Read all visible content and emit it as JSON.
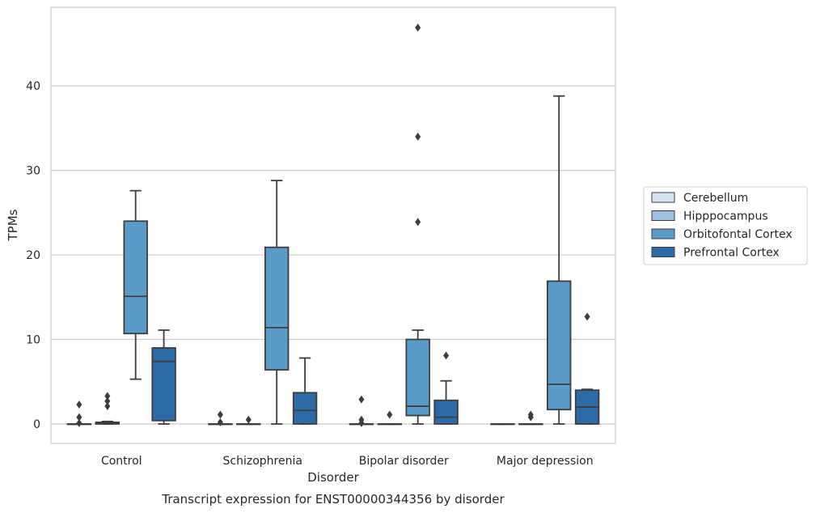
{
  "chart_data": {
    "type": "box",
    "title": "",
    "caption": "Transcript expression for ENST00000344356 by disorder",
    "xlabel": "Disorder",
    "ylabel": "TPMs",
    "ylim": [
      -2.3,
      49.3
    ],
    "yticks": [
      0,
      10,
      20,
      30,
      40
    ],
    "grid": "horizontal",
    "legend_position": "right",
    "categories": [
      "Control",
      "Schizophrenia",
      "Bipolar disorder",
      "Major depression"
    ],
    "series": [
      {
        "name": "Cerebellum",
        "color": "#d4e2f1",
        "boxes": [
          {
            "whislo": 0,
            "q1": 0,
            "med": 0,
            "q3": 0,
            "whishi": 0,
            "fliers": [
              0.1,
              0.8,
              2.3
            ]
          },
          {
            "whislo": 0,
            "q1": 0,
            "med": 0,
            "q3": 0,
            "whishi": 0,
            "fliers": [
              0.2,
              1.1
            ]
          },
          {
            "whislo": 0,
            "q1": 0,
            "med": 0,
            "q3": 0,
            "whishi": 0,
            "fliers": [
              0.1,
              0.5,
              2.9
            ]
          },
          {
            "whislo": 0,
            "q1": 0,
            "med": 0,
            "q3": 0,
            "whishi": 0,
            "fliers": []
          }
        ]
      },
      {
        "name": "Hipppocampus",
        "color": "#9cc0de",
        "boxes": [
          {
            "whislo": 0,
            "q1": 0,
            "med": 0.1,
            "q3": 0.2,
            "whishi": 0.3,
            "fliers": [
              2.1,
              2.7,
              3.3
            ]
          },
          {
            "whislo": 0,
            "q1": 0,
            "med": 0,
            "q3": 0,
            "whishi": 0,
            "fliers": [
              0.5
            ]
          },
          {
            "whislo": 0,
            "q1": 0,
            "med": 0,
            "q3": 0,
            "whishi": 0,
            "fliers": [
              1.1
            ]
          },
          {
            "whislo": 0,
            "q1": 0,
            "med": 0,
            "q3": 0,
            "whishi": 0,
            "fliers": [
              0.8,
              1.1
            ]
          }
        ]
      },
      {
        "name": "Orbitofontal Cortex",
        "color": "#5b9bc8",
        "boxes": [
          {
            "whislo": 5.3,
            "q1": 10.7,
            "med": 15.1,
            "q3": 24.0,
            "whishi": 27.6,
            "fliers": []
          },
          {
            "whislo": 0,
            "q1": 6.4,
            "med": 11.4,
            "q3": 20.9,
            "whishi": 28.8,
            "fliers": []
          },
          {
            "whislo": 0,
            "q1": 1.0,
            "med": 2.1,
            "q3": 10.0,
            "whishi": 11.1,
            "fliers": [
              23.9,
              34.0,
              46.9
            ]
          },
          {
            "whislo": 0,
            "q1": 1.7,
            "med": 4.7,
            "q3": 16.9,
            "whishi": 38.8,
            "fliers": []
          }
        ]
      },
      {
        "name": "Prefrontal Cortex",
        "color": "#2c6aa8",
        "boxes": [
          {
            "whislo": 0,
            "q1": 0.4,
            "med": 7.4,
            "q3": 9.0,
            "whishi": 11.1,
            "fliers": []
          },
          {
            "whislo": 0,
            "q1": 0,
            "med": 1.6,
            "q3": 3.7,
            "whishi": 7.8,
            "fliers": []
          },
          {
            "whislo": 0,
            "q1": 0,
            "med": 0.8,
            "q3": 2.8,
            "whishi": 5.1,
            "fliers": [
              8.1
            ]
          },
          {
            "whislo": 0,
            "q1": 0,
            "med": 2.0,
            "q3": 4.0,
            "whishi": 4.1,
            "fliers": [
              12.7
            ]
          }
        ]
      }
    ]
  }
}
